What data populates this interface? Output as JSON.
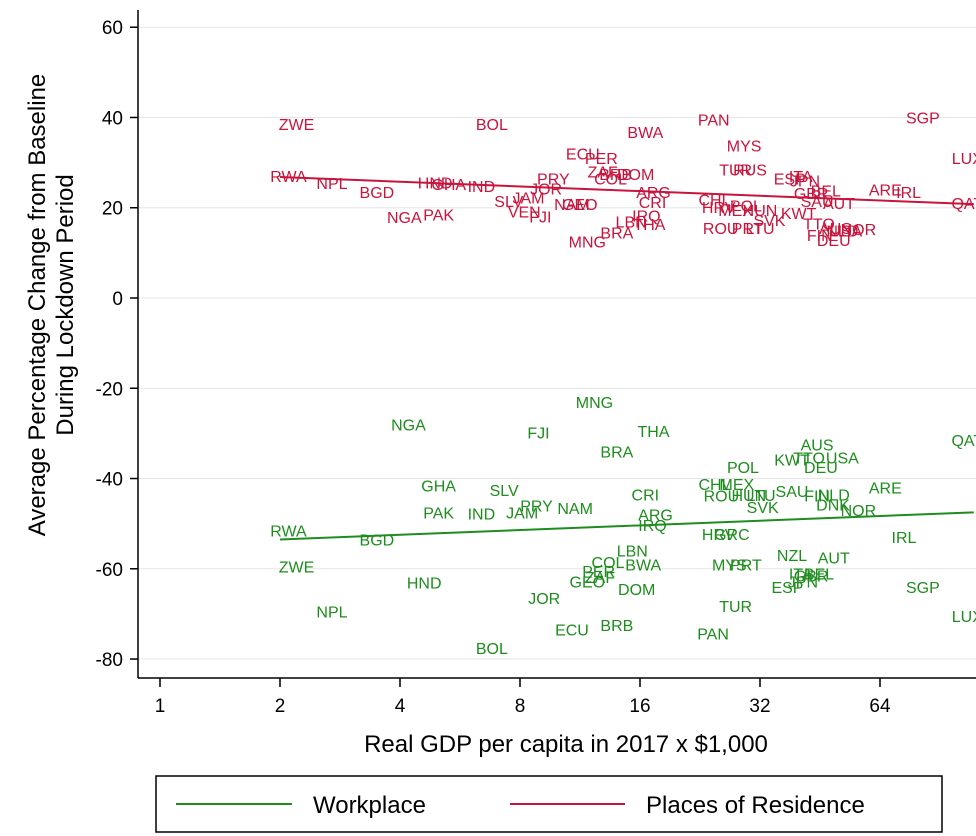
{
  "chart_data": {
    "type": "scatter",
    "xlabel": "Real GDP per capita in 2017 x $1,000",
    "ylabel": [
      "Average Percentage Change from Baseline",
      "During Lockdown Period"
    ],
    "x_scale": "log2",
    "x_ticks": [
      1,
      2,
      4,
      8,
      16,
      32,
      64
    ],
    "y_ticks": [
      60,
      40,
      20,
      0,
      -20,
      -40,
      -60,
      -80
    ],
    "xlim": [
      1,
      110
    ],
    "ylim": [
      -84,
      64
    ],
    "grid": "horizontal",
    "legend_position": "bottom",
    "colors": {
      "Workplace": "#1e8c1e",
      "Places of Residence": "#c8143c"
    },
    "series": [
      {
        "name": "Places of Residence",
        "fit_line": [
          [
            2.0,
            26.8
          ],
          [
            110,
            20.8
          ]
        ],
        "points": [
          {
            "label": "ZWE",
            "x": 2.2,
            "y": 38.5
          },
          {
            "label": "RWA",
            "x": 2.1,
            "y": 27.0
          },
          {
            "label": "NPL",
            "x": 2.7,
            "y": 25.5
          },
          {
            "label": "BGD",
            "x": 3.5,
            "y": 23.5
          },
          {
            "label": "HND",
            "x": 4.9,
            "y": 25.6
          },
          {
            "label": "GHA",
            "x": 5.3,
            "y": 25.3
          },
          {
            "label": "IND",
            "x": 6.4,
            "y": 24.8
          },
          {
            "label": "NGA",
            "x": 4.1,
            "y": 18.0
          },
          {
            "label": "PAK",
            "x": 5.0,
            "y": 18.5
          },
          {
            "label": "SLV",
            "x": 7.5,
            "y": 21.5
          },
          {
            "label": "JAM",
            "x": 8.4,
            "y": 22.3
          },
          {
            "label": "VEN",
            "x": 8.2,
            "y": 19.2
          },
          {
            "label": "FJI",
            "x": 9.0,
            "y": 18.1
          },
          {
            "label": "PRY",
            "x": 9.7,
            "y": 26.5
          },
          {
            "label": "JOR",
            "x": 9.3,
            "y": 24.3
          },
          {
            "label": "NAM",
            "x": 10.8,
            "y": 20.8
          },
          {
            "label": "GEO",
            "x": 11.3,
            "y": 20.8
          },
          {
            "label": "BOL",
            "x": 6.8,
            "y": 38.5
          },
          {
            "label": "ECU",
            "x": 11.5,
            "y": 32.0
          },
          {
            "label": "PER",
            "x": 12.8,
            "y": 31.0
          },
          {
            "label": "ZAF",
            "x": 12.9,
            "y": 28.0
          },
          {
            "label": "BRB",
            "x": 13.9,
            "y": 27.5
          },
          {
            "label": "COL",
            "x": 13.5,
            "y": 26.5
          },
          {
            "label": "DOM",
            "x": 15.6,
            "y": 27.5
          },
          {
            "label": "BWA",
            "x": 16.5,
            "y": 36.8
          },
          {
            "label": "MNG",
            "x": 11.8,
            "y": 12.5
          },
          {
            "label": "BRA",
            "x": 14.0,
            "y": 14.5
          },
          {
            "label": "LBN",
            "x": 15.2,
            "y": 17.0
          },
          {
            "label": "THA",
            "x": 16.9,
            "y": 16.4
          },
          {
            "label": "IRQ",
            "x": 16.6,
            "y": 18.3
          },
          {
            "label": "ARG",
            "x": 17.3,
            "y": 23.5
          },
          {
            "label": "CRI",
            "x": 17.2,
            "y": 21.3
          },
          {
            "label": "PAN",
            "x": 24.5,
            "y": 39.5
          },
          {
            "label": "MYS",
            "x": 29.2,
            "y": 33.8
          },
          {
            "label": "TUR",
            "x": 27.8,
            "y": 28.5
          },
          {
            "label": "RUS",
            "x": 30.2,
            "y": 28.5
          },
          {
            "label": "CHL",
            "x": 24.6,
            "y": 21.8
          },
          {
            "label": "HRV",
            "x": 25.2,
            "y": 20.2
          },
          {
            "label": "POL",
            "x": 29.5,
            "y": 20.5
          },
          {
            "label": "MEX",
            "x": 27.8,
            "y": 19.5
          },
          {
            "label": "HUN",
            "x": 32.0,
            "y": 19.5
          },
          {
            "label": "SVK",
            "x": 33.8,
            "y": 17.3
          },
          {
            "label": "ROU",
            "x": 25.5,
            "y": 15.5
          },
          {
            "label": "PRT",
            "x": 29.8,
            "y": 15.5
          },
          {
            "label": "LTU",
            "x": 32.0,
            "y": 15.5
          },
          {
            "label": "ESP",
            "x": 38.0,
            "y": 26.5
          },
          {
            "label": "ITA",
            "x": 40.5,
            "y": 27.0
          },
          {
            "label": "JPN",
            "x": 41.5,
            "y": 26.0
          },
          {
            "label": "GBR",
            "x": 43.0,
            "y": 23.3
          },
          {
            "label": "BEL",
            "x": 46.8,
            "y": 23.8
          },
          {
            "label": "SAU",
            "x": 44.5,
            "y": 21.5
          },
          {
            "label": "AUT",
            "x": 50.5,
            "y": 21.0
          },
          {
            "label": "KWT",
            "x": 40.0,
            "y": 18.8
          },
          {
            "label": "TTO",
            "x": 45.0,
            "y": 16.5
          },
          {
            "label": "FIN",
            "x": 45.2,
            "y": 14.0
          },
          {
            "label": "DEU",
            "x": 49.0,
            "y": 12.8
          },
          {
            "label": "AUS",
            "x": 49.5,
            "y": 15.5
          },
          {
            "label": "NLD",
            "x": 51.5,
            "y": 15.0
          },
          {
            "label": "USA",
            "x": 52.5,
            "y": 15.0
          },
          {
            "label": "NOR",
            "x": 56.5,
            "y": 15.3
          },
          {
            "label": "ARE",
            "x": 66.0,
            "y": 24.0
          },
          {
            "label": "IRL",
            "x": 75.5,
            "y": 23.5
          },
          {
            "label": "SGP",
            "x": 82.0,
            "y": 40.0
          },
          {
            "label": "LUX",
            "x": 106.0,
            "y": 31.0
          },
          {
            "label": "QAT",
            "x": 106.0,
            "y": 21.0
          }
        ]
      },
      {
        "name": "Workplace",
        "fit_line": [
          [
            2.0,
            -53.5
          ],
          [
            110,
            -47.5
          ]
        ],
        "points": [
          {
            "label": "RWA",
            "x": 2.1,
            "y": -51.5
          },
          {
            "label": "ZWE",
            "x": 2.2,
            "y": -59.5
          },
          {
            "label": "NPL",
            "x": 2.7,
            "y": -69.5
          },
          {
            "label": "BGD",
            "x": 3.5,
            "y": -53.5
          },
          {
            "label": "HND",
            "x": 4.6,
            "y": -63.0
          },
          {
            "label": "NGA",
            "x": 4.2,
            "y": -28.0
          },
          {
            "label": "GHA",
            "x": 5.0,
            "y": -41.5
          },
          {
            "label": "PAK",
            "x": 5.0,
            "y": -47.5
          },
          {
            "label": "IND",
            "x": 6.4,
            "y": -47.8
          },
          {
            "label": "SLV",
            "x": 7.3,
            "y": -42.5
          },
          {
            "label": "JAM",
            "x": 8.1,
            "y": -47.5
          },
          {
            "label": "PRY",
            "x": 8.8,
            "y": -46.0
          },
          {
            "label": "FJI",
            "x": 8.9,
            "y": -29.8
          },
          {
            "label": "JOR",
            "x": 9.2,
            "y": -66.5
          },
          {
            "label": "NAM",
            "x": 11.0,
            "y": -46.5
          },
          {
            "label": "BOL",
            "x": 6.8,
            "y": -77.5
          },
          {
            "label": "ECU",
            "x": 10.8,
            "y": -73.5
          },
          {
            "label": "MNG",
            "x": 12.3,
            "y": -23.0
          },
          {
            "label": "GEO",
            "x": 11.8,
            "y": -62.8
          },
          {
            "label": "ZAF",
            "x": 12.7,
            "y": -61.8
          },
          {
            "label": "PER",
            "x": 12.6,
            "y": -60.5
          },
          {
            "label": "COL",
            "x": 13.3,
            "y": -58.5
          },
          {
            "label": "LBN",
            "x": 15.3,
            "y": -56.0
          },
          {
            "label": "BWA",
            "x": 16.3,
            "y": -59.0
          },
          {
            "label": "BRB",
            "x": 14.0,
            "y": -72.5
          },
          {
            "label": "DOM",
            "x": 15.7,
            "y": -64.5
          },
          {
            "label": "BRA",
            "x": 14.0,
            "y": -34.0
          },
          {
            "label": "THA",
            "x": 17.3,
            "y": -29.5
          },
          {
            "label": "CRI",
            "x": 16.5,
            "y": -43.5
          },
          {
            "label": "ARG",
            "x": 17.5,
            "y": -48.0
          },
          {
            "label": "IRQ",
            "x": 17.2,
            "y": -50.3
          },
          {
            "label": "PAN",
            "x": 24.4,
            "y": -74.3
          },
          {
            "label": "TUR",
            "x": 27.8,
            "y": -68.3
          },
          {
            "label": "CHL",
            "x": 24.6,
            "y": -41.2
          },
          {
            "label": "MEX",
            "x": 28.0,
            "y": -41.2
          },
          {
            "label": "POL",
            "x": 29.0,
            "y": -37.5
          },
          {
            "label": "ROU",
            "x": 25.6,
            "y": -43.8
          },
          {
            "label": "HUN",
            "x": 30.0,
            "y": -43.6
          },
          {
            "label": "LTU",
            "x": 32.2,
            "y": -43.6
          },
          {
            "label": "SVK",
            "x": 32.5,
            "y": -46.3
          },
          {
            "label": "HRV",
            "x": 25.2,
            "y": -52.3
          },
          {
            "label": "GRC",
            "x": 27.2,
            "y": -52.3
          },
          {
            "label": "MYS",
            "x": 26.8,
            "y": -59.0
          },
          {
            "label": "PRT",
            "x": 29.5,
            "y": -59.0
          },
          {
            "label": "KWT",
            "x": 38.5,
            "y": -35.8
          },
          {
            "label": "TTO",
            "x": 42.5,
            "y": -35.3
          },
          {
            "label": "USA",
            "x": 51.5,
            "y": -35.3
          },
          {
            "label": "AUS",
            "x": 44.5,
            "y": -32.5
          },
          {
            "label": "DEU",
            "x": 45.5,
            "y": -37.5
          },
          {
            "label": "SAU",
            "x": 38.5,
            "y": -42.8
          },
          {
            "label": "FIN",
            "x": 44.5,
            "y": -43.8
          },
          {
            "label": "NLD",
            "x": 49.0,
            "y": -43.5
          },
          {
            "label": "DNK",
            "x": 48.8,
            "y": -45.8
          },
          {
            "label": "NOR",
            "x": 56.5,
            "y": -47.0
          },
          {
            "label": "ARE",
            "x": 66.0,
            "y": -42.0
          },
          {
            "label": "IRL",
            "x": 73.5,
            "y": -53.0
          },
          {
            "label": "NZL",
            "x": 38.5,
            "y": -57.0
          },
          {
            "label": "AUT",
            "x": 49.0,
            "y": -57.5
          },
          {
            "label": "ITA",
            "x": 40.5,
            "y": -61.0
          },
          {
            "label": "GBR",
            "x": 43.0,
            "y": -61.5
          },
          {
            "label": "BEL",
            "x": 45.0,
            "y": -61.0
          },
          {
            "label": "JPN",
            "x": 41.0,
            "y": -62.8
          },
          {
            "label": "ESP",
            "x": 37.5,
            "y": -64.0
          },
          {
            "label": "SGP",
            "x": 82.0,
            "y": -64.0
          },
          {
            "label": "QAT",
            "x": 106.0,
            "y": -31.5
          },
          {
            "label": "LUX",
            "x": 106.0,
            "y": -70.5
          }
        ]
      }
    ]
  },
  "legend": {
    "items": [
      "Workplace",
      "Places of Residence"
    ]
  }
}
